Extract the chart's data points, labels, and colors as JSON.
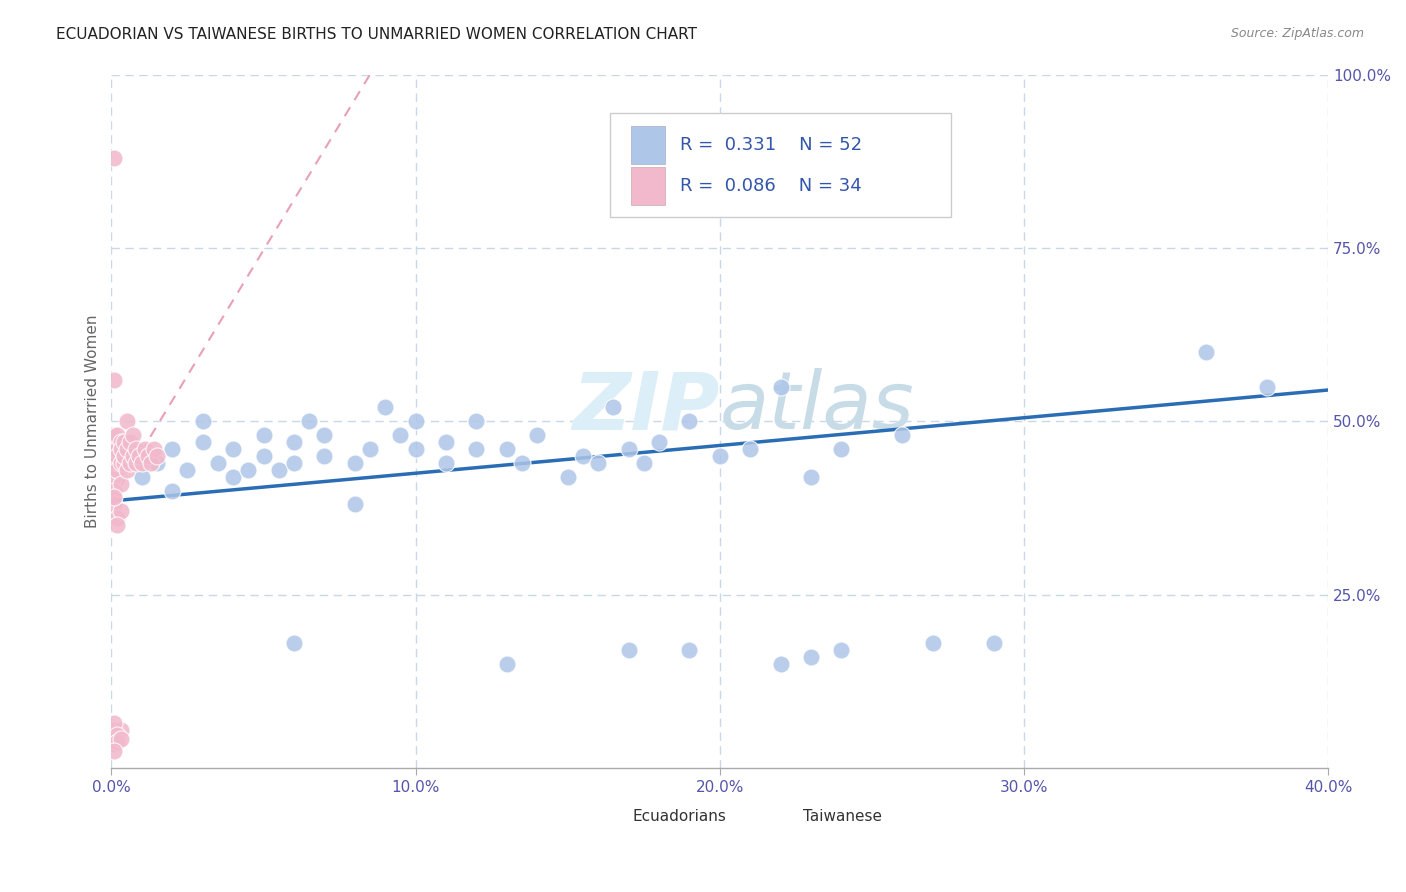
{
  "title": "ECUADORIAN VS TAIWANESE BIRTHS TO UNMARRIED WOMEN CORRELATION CHART",
  "source": "Source: ZipAtlas.com",
  "ylabel": "Births to Unmarried Women",
  "xlim": [
    0.0,
    0.4
  ],
  "ylim": [
    0.0,
    1.0
  ],
  "xtick_labels": [
    "0.0%",
    "",
    "",
    "",
    "",
    "10.0%",
    "",
    "",
    "",
    "",
    "20.0%",
    "",
    "",
    "",
    "",
    "30.0%",
    "",
    "",
    "",
    "",
    "40.0%"
  ],
  "xtick_vals": [
    0.0,
    0.02,
    0.04,
    0.06,
    0.08,
    0.1,
    0.12,
    0.14,
    0.16,
    0.18,
    0.2,
    0.22,
    0.24,
    0.26,
    0.28,
    0.3,
    0.32,
    0.34,
    0.36,
    0.38,
    0.4
  ],
  "ytick_labels": [
    "25.0%",
    "50.0%",
    "75.0%",
    "100.0%"
  ],
  "ytick_vals": [
    0.25,
    0.5,
    0.75,
    1.0
  ],
  "grid_ytick_vals": [
    0.25,
    0.5,
    0.75,
    1.0
  ],
  "grid_xtick_vals": [
    0.0,
    0.1,
    0.2,
    0.3,
    0.4
  ],
  "legend_label1": "Ecuadorians",
  "legend_label2": "Taiwanese",
  "legend_R1": "R =  0.331",
  "legend_N1": "N = 52",
  "legend_R2": "R =  0.086",
  "legend_N2": "N = 34",
  "color_ecuador": "#aec6e8",
  "color_taiwan": "#f2b8cb",
  "color_trendline_ecuador": "#2a6db5",
  "color_trendline_taiwan": "#e8a0b8",
  "watermark_color": "#dceef8",
  "background_color": "#ffffff",
  "grid_color": "#c8d8e8",
  "ecuador_x": [
    0.01,
    0.01,
    0.015,
    0.02,
    0.02,
    0.025,
    0.03,
    0.03,
    0.035,
    0.04,
    0.04,
    0.045,
    0.05,
    0.05,
    0.055,
    0.06,
    0.06,
    0.065,
    0.07,
    0.07,
    0.08,
    0.08,
    0.085,
    0.09,
    0.095,
    0.1,
    0.1,
    0.11,
    0.11,
    0.12,
    0.12,
    0.13,
    0.135,
    0.14,
    0.15,
    0.155,
    0.16,
    0.165,
    0.17,
    0.175,
    0.18,
    0.19,
    0.2,
    0.21,
    0.22,
    0.23,
    0.24,
    0.26,
    0.27,
    0.29,
    0.36,
    0.38
  ],
  "ecuador_y": [
    0.42,
    0.45,
    0.44,
    0.4,
    0.46,
    0.43,
    0.47,
    0.5,
    0.44,
    0.42,
    0.46,
    0.43,
    0.48,
    0.45,
    0.43,
    0.47,
    0.44,
    0.5,
    0.45,
    0.48,
    0.38,
    0.44,
    0.46,
    0.52,
    0.48,
    0.46,
    0.5,
    0.44,
    0.47,
    0.46,
    0.5,
    0.46,
    0.44,
    0.48,
    0.42,
    0.45,
    0.44,
    0.52,
    0.46,
    0.44,
    0.47,
    0.5,
    0.45,
    0.46,
    0.55,
    0.42,
    0.46,
    0.48,
    0.18,
    0.18,
    0.6,
    0.55
  ],
  "taiwan_x": [
    0.001,
    0.001,
    0.001,
    0.001,
    0.001,
    0.002,
    0.002,
    0.002,
    0.002,
    0.002,
    0.003,
    0.003,
    0.003,
    0.003,
    0.004,
    0.004,
    0.004,
    0.005,
    0.005,
    0.005,
    0.006,
    0.006,
    0.007,
    0.007,
    0.008,
    0.008,
    0.009,
    0.01,
    0.011,
    0.012,
    0.013,
    0.014,
    0.015,
    0.001
  ],
  "taiwan_y": [
    0.44,
    0.46,
    0.48,
    0.42,
    0.4,
    0.44,
    0.46,
    0.48,
    0.43,
    0.45,
    0.47,
    0.44,
    0.46,
    0.41,
    0.44,
    0.47,
    0.45,
    0.43,
    0.46,
    0.5,
    0.44,
    0.47,
    0.45,
    0.48,
    0.44,
    0.46,
    0.45,
    0.44,
    0.46,
    0.45,
    0.44,
    0.46,
    0.45,
    0.88
  ],
  "ecu_trend_x": [
    0.0,
    0.4
  ],
  "ecu_trend_y": [
    0.385,
    0.545
  ],
  "tai_trend_x": [
    0.0,
    0.085
  ],
  "tai_trend_y": [
    0.385,
    1.0
  ]
}
